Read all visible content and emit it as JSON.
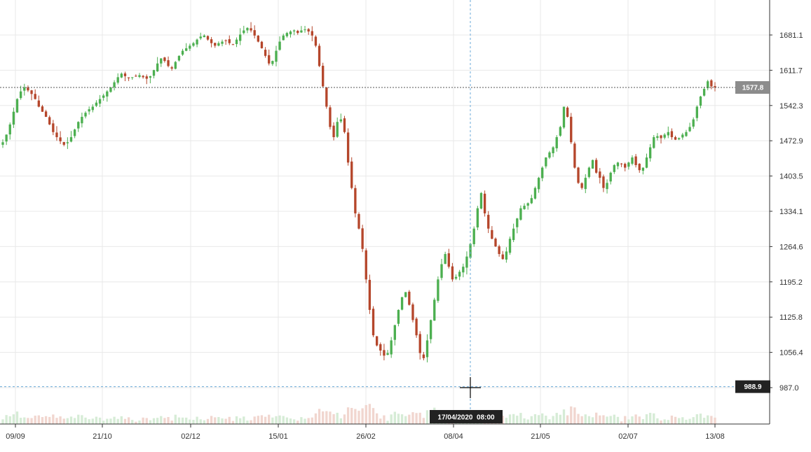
{
  "chart_data": {
    "type": "candlestick",
    "title": "",
    "xlabel": "",
    "ylabel": "",
    "ylim": [
      940,
      1730
    ],
    "grid": true,
    "y_ticks": [
      "1681.1",
      "1611.7",
      "1542.3",
      "1472.9",
      "1403.5",
      "1334.1",
      "1264.6",
      "1195.2",
      "1125.8",
      "1056.4",
      "987.0"
    ],
    "x_ticks": [
      "09/09",
      "21/10",
      "02/12",
      "15/01",
      "26/02",
      "08/04",
      "21/05",
      "02/07",
      "13/08"
    ],
    "last_price": {
      "label": "1577.8",
      "value": 1577.8
    },
    "crosshair": {
      "price_label": "988.9",
      "price": 988.9,
      "time_label": "17/04/2020  08:00"
    },
    "colors": {
      "up": "#4caf50",
      "down": "#b5462b",
      "grid": "#e8e8e8",
      "axis": "#333333"
    },
    "close_series": [
      1470,
      1485,
      1505,
      1530,
      1555,
      1570,
      1578,
      1572,
      1565,
      1555,
      1540,
      1530,
      1520,
      1505,
      1490,
      1480,
      1472,
      1465,
      1470,
      1480,
      1495,
      1510,
      1520,
      1528,
      1535,
      1540,
      1548,
      1555,
      1562,
      1570,
      1578,
      1588,
      1598,
      1605,
      1600,
      1596,
      1598,
      1600,
      1602,
      1598,
      1595,
      1600,
      1612,
      1625,
      1635,
      1630,
      1620,
      1615,
      1628,
      1640,
      1650,
      1655,
      1660,
      1665,
      1672,
      1678,
      1680,
      1672,
      1665,
      1660,
      1665,
      1668,
      1670,
      1665,
      1662,
      1672,
      1682,
      1690,
      1695,
      1690,
      1680,
      1668,
      1655,
      1640,
      1625,
      1630,
      1650,
      1668,
      1680,
      1685,
      1688,
      1690,
      1685,
      1690,
      1692,
      1688,
      1680,
      1660,
      1620,
      1580,
      1540,
      1500,
      1480,
      1510,
      1515,
      1490,
      1430,
      1380,
      1330,
      1300,
      1260,
      1200,
      1140,
      1090,
      1070,
      1060,
      1050,
      1055,
      1080,
      1110,
      1140,
      1165,
      1175,
      1150,
      1120,
      1090,
      1055,
      1045,
      1080,
      1120,
      1160,
      1200,
      1230,
      1250,
      1225,
      1200,
      1205,
      1215,
      1225,
      1245,
      1270,
      1300,
      1340,
      1370,
      1330,
      1300,
      1280,
      1265,
      1250,
      1240,
      1255,
      1280,
      1300,
      1320,
      1340,
      1345,
      1350,
      1360,
      1380,
      1400,
      1420,
      1440,
      1450,
      1460,
      1480,
      1500,
      1540,
      1520,
      1470,
      1420,
      1390,
      1380,
      1400,
      1420,
      1435,
      1410,
      1400,
      1380,
      1390,
      1410,
      1425,
      1430,
      1428,
      1420,
      1430,
      1440,
      1425,
      1415,
      1420,
      1440,
      1460,
      1480,
      1482,
      1478,
      1485,
      1490,
      1480,
      1475,
      1478,
      1485,
      1490,
      1500,
      1515,
      1540,
      1560,
      1575,
      1590,
      1580,
      1577.8
    ]
  }
}
